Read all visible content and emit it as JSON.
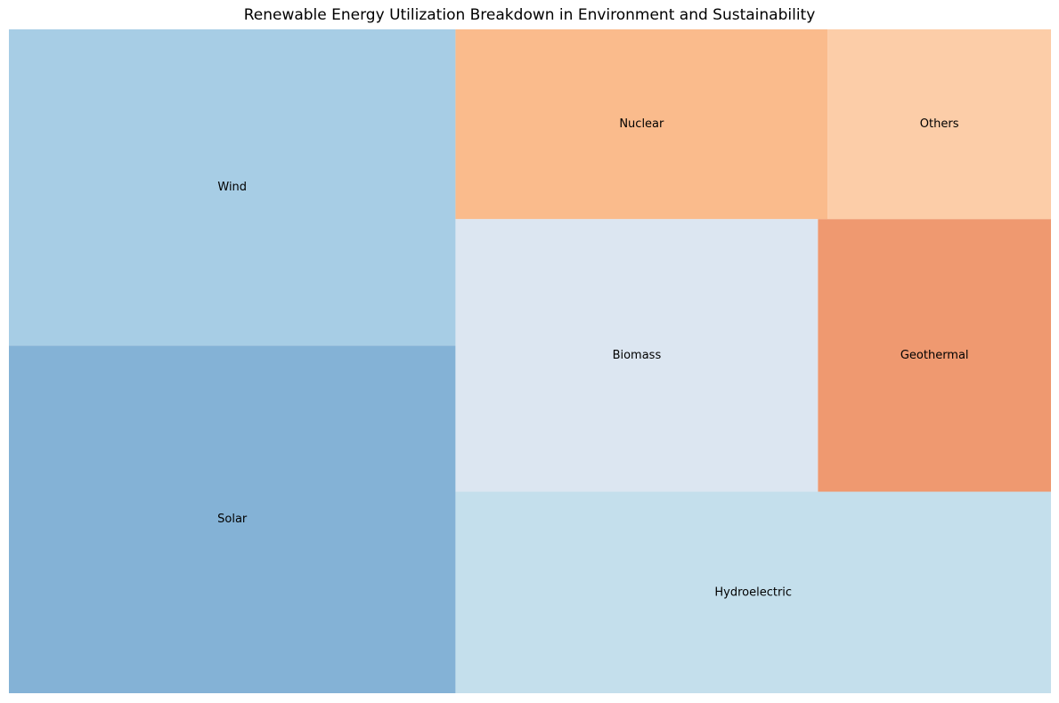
{
  "chart_data": {
    "type": "treemap",
    "title": "Renewable Energy Utilization Breakdown in Environment and Sustainability",
    "items": [
      {
        "label": "Solar",
        "value": 22,
        "color": "#84b2d6"
      },
      {
        "label": "Wind",
        "value": 20,
        "color": "#a7cde5"
      },
      {
        "label": "Hydroelectric",
        "value": 17,
        "color": "#c4dfec"
      },
      {
        "label": "Biomass",
        "value": 14,
        "color": "#dce6f1"
      },
      {
        "label": "Geothermal",
        "value": 9,
        "color": "#ef9970"
      },
      {
        "label": "Nuclear",
        "value": 10,
        "color": "#fabb8c"
      },
      {
        "label": "Others",
        "value": 6,
        "color": "#fccda8"
      }
    ]
  }
}
